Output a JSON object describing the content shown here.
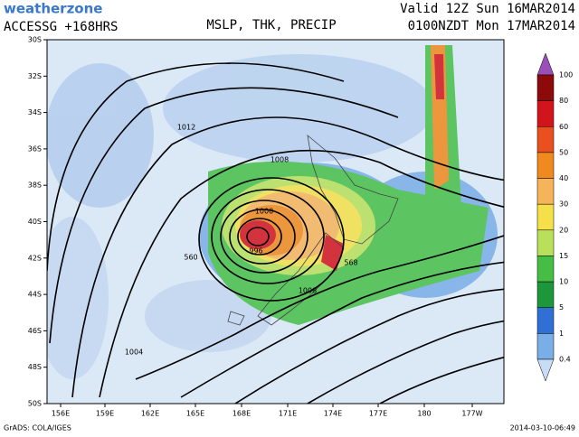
{
  "header": {
    "brand": "weatherzone",
    "model": "ACCESSG +168HRS",
    "title": "MSLP, THK, PRECIP",
    "valid_utc": "Valid 12Z Sun 16MAR2014",
    "valid_local": "0100NZDT Mon 17MAR2014"
  },
  "map": {
    "lat_labels": [
      "30S",
      "32S",
      "34S",
      "36S",
      "38S",
      "40S",
      "42S",
      "44S",
      "46S",
      "48S",
      "50S"
    ],
    "lon_labels": [
      "156E",
      "159E",
      "162E",
      "165E",
      "168E",
      "171E",
      "174E",
      "177E",
      "180",
      "177W"
    ],
    "contour_labels": [
      "1012",
      "1008",
      "1000",
      "996",
      "1008",
      "1004",
      "560",
      "568"
    ]
  },
  "legend": {
    "labels": [
      "100",
      "80",
      "60",
      "50",
      "40",
      "30",
      "20",
      "15",
      "10",
      "5",
      "1",
      "0.4"
    ],
    "colors": [
      "#9a4fb8",
      "#8c0a0a",
      "#d2141c",
      "#e9501e",
      "#f08a1e",
      "#f6b45a",
      "#f5e04a",
      "#b8e05a",
      "#46be46",
      "#1e963c",
      "#2f6fd6",
      "#7aaee6",
      "#c8dcf5"
    ]
  },
  "footer": {
    "credit": "GrADS: COLA/IGES",
    "timestamp": "2014-03-10-06:49"
  }
}
